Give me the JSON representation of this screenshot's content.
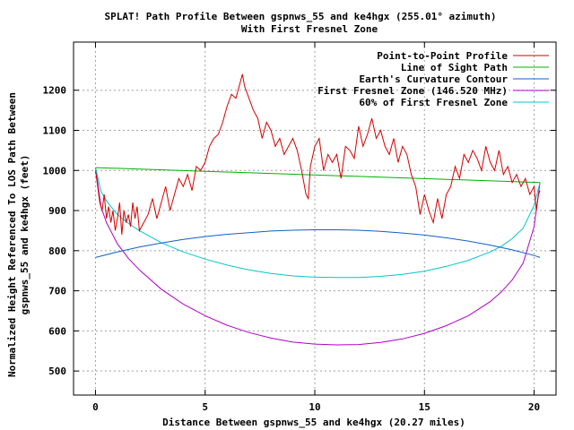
{
  "chart_data": {
    "type": "line",
    "title": "SPLAT! Path Profile Between gspnws_55 and ke4hgx (255.01° azimuth)",
    "subtitle": "With First Fresnel Zone",
    "xlabel": "Distance Between gspnws_55 and ke4hgx (20.27 miles)",
    "ylabel_line1": "Normalized Height Referenced To LOS Path Between",
    "ylabel_line2": "gspnws_55 and ke4hgx (feet)",
    "xlim": [
      -1,
      21
    ],
    "ylim": [
      440,
      1320
    ],
    "x_ticks": [
      0,
      5,
      10,
      15,
      20
    ],
    "y_ticks": [
      500,
      600,
      700,
      800,
      900,
      1000,
      1100,
      1200
    ],
    "grid": true,
    "legend_position": "top-right",
    "series": [
      {
        "name": "Point-to-Point Profile",
        "color": "#d40000",
        "x": [
          0.0,
          0.1,
          0.2,
          0.3,
          0.4,
          0.5,
          0.6,
          0.7,
          0.8,
          0.9,
          1.0,
          1.1,
          1.2,
          1.3,
          1.4,
          1.5,
          1.6,
          1.7,
          1.8,
          1.9,
          2.0,
          2.2,
          2.4,
          2.6,
          2.8,
          3.0,
          3.2,
          3.4,
          3.6,
          3.8,
          4.0,
          4.2,
          4.4,
          4.6,
          4.8,
          5.0,
          5.2,
          5.4,
          5.6,
          5.8,
          6.0,
          6.2,
          6.4,
          6.6,
          6.7,
          6.8,
          7.0,
          7.2,
          7.4,
          7.6,
          7.8,
          8.0,
          8.2,
          8.4,
          8.6,
          8.8,
          9.0,
          9.2,
          9.4,
          9.6,
          9.7,
          9.8,
          10.0,
          10.2,
          10.4,
          10.6,
          10.8,
          11.0,
          11.2,
          11.4,
          11.6,
          11.8,
          12.0,
          12.2,
          12.4,
          12.6,
          12.8,
          13.0,
          13.2,
          13.4,
          13.6,
          13.8,
          14.0,
          14.2,
          14.4,
          14.6,
          14.8,
          15.0,
          15.2,
          15.4,
          15.6,
          15.8,
          16.0,
          16.2,
          16.4,
          16.6,
          16.8,
          17.0,
          17.2,
          17.4,
          17.6,
          17.8,
          18.0,
          18.2,
          18.4,
          18.6,
          18.8,
          19.0,
          19.2,
          19.4,
          19.6,
          19.8,
          20.0,
          20.1,
          20.2,
          20.27
        ],
        "values": [
          1000,
          960,
          920,
          900,
          940,
          880,
          910,
          870,
          900,
          850,
          880,
          920,
          840,
          900,
          870,
          890,
          860,
          920,
          880,
          910,
          850,
          870,
          890,
          930,
          880,
          920,
          960,
          900,
          940,
          980,
          960,
          990,
          950,
          1010,
          1000,
          1020,
          1060,
          1080,
          1090,
          1120,
          1160,
          1190,
          1180,
          1220,
          1240,
          1210,
          1180,
          1150,
          1130,
          1080,
          1120,
          1100,
          1060,
          1080,
          1040,
          1060,
          1080,
          1050,
          1000,
          940,
          930,
          1010,
          1060,
          1080,
          1000,
          1040,
          1020,
          1040,
          980,
          1060,
          1050,
          1030,
          1110,
          1060,
          1090,
          1130,
          1080,
          1100,
          1060,
          1040,
          1080,
          1020,
          1060,
          1040,
          990,
          960,
          890,
          940,
          900,
          870,
          930,
          880,
          940,
          960,
          1010,
          980,
          1040,
          1020,
          1050,
          1030,
          1000,
          1060,
          1020,
          1000,
          1050,
          990,
          1010,
          970,
          990,
          960,
          980,
          940,
          960,
          900,
          940,
          950
        ]
      },
      {
        "name": "Line of Sight Path",
        "color": "#00b000",
        "x": [
          0,
          20.27
        ],
        "values": [
          1007,
          970
        ]
      },
      {
        "name": "Earth's Curvature Contour",
        "color": "#1060c8",
        "x": [
          0,
          1,
          2,
          3,
          4,
          5,
          6,
          7,
          8,
          9,
          10,
          11,
          12,
          13,
          14,
          15,
          16,
          17,
          18,
          19,
          20,
          20.27
        ],
        "values": [
          783,
          797,
          809,
          819,
          828,
          835,
          841,
          845,
          849,
          851,
          852,
          852,
          851,
          848,
          844,
          839,
          832,
          824,
          814,
          802,
          788,
          783
        ]
      },
      {
        "name": "First Fresnel Zone (146.520 MHz)",
        "color": "#b000c8",
        "x": [
          0,
          0.25,
          0.5,
          1,
          1.5,
          2,
          3,
          4,
          5,
          6,
          7,
          8,
          9,
          10,
          11,
          12,
          13,
          14,
          15,
          16,
          17,
          18,
          18.5,
          19,
          19.5,
          20,
          20.27
        ],
        "values": [
          1007,
          910,
          870,
          817,
          781,
          752,
          704,
          667,
          638,
          614,
          596,
          582,
          572,
          567,
          565,
          566,
          571,
          580,
          594,
          613,
          638,
          673,
          697,
          727,
          769,
          860,
          970
        ]
      },
      {
        "name": "60% of First Fresnel Zone",
        "color": "#00c8c8",
        "x": [
          0,
          0.25,
          0.5,
          1,
          1.5,
          2,
          3,
          4,
          5,
          6,
          7,
          8,
          9,
          10,
          11,
          12,
          13,
          14,
          15,
          16,
          17,
          18,
          18.5,
          19,
          19.5,
          20,
          20.27
        ],
        "values": [
          1007,
          948,
          924,
          890,
          868,
          850,
          820,
          797,
          779,
          764,
          752,
          743,
          737,
          734,
          733,
          733,
          736,
          741,
          749,
          761,
          776,
          797,
          811,
          830,
          856,
          913,
          970
        ]
      }
    ]
  }
}
